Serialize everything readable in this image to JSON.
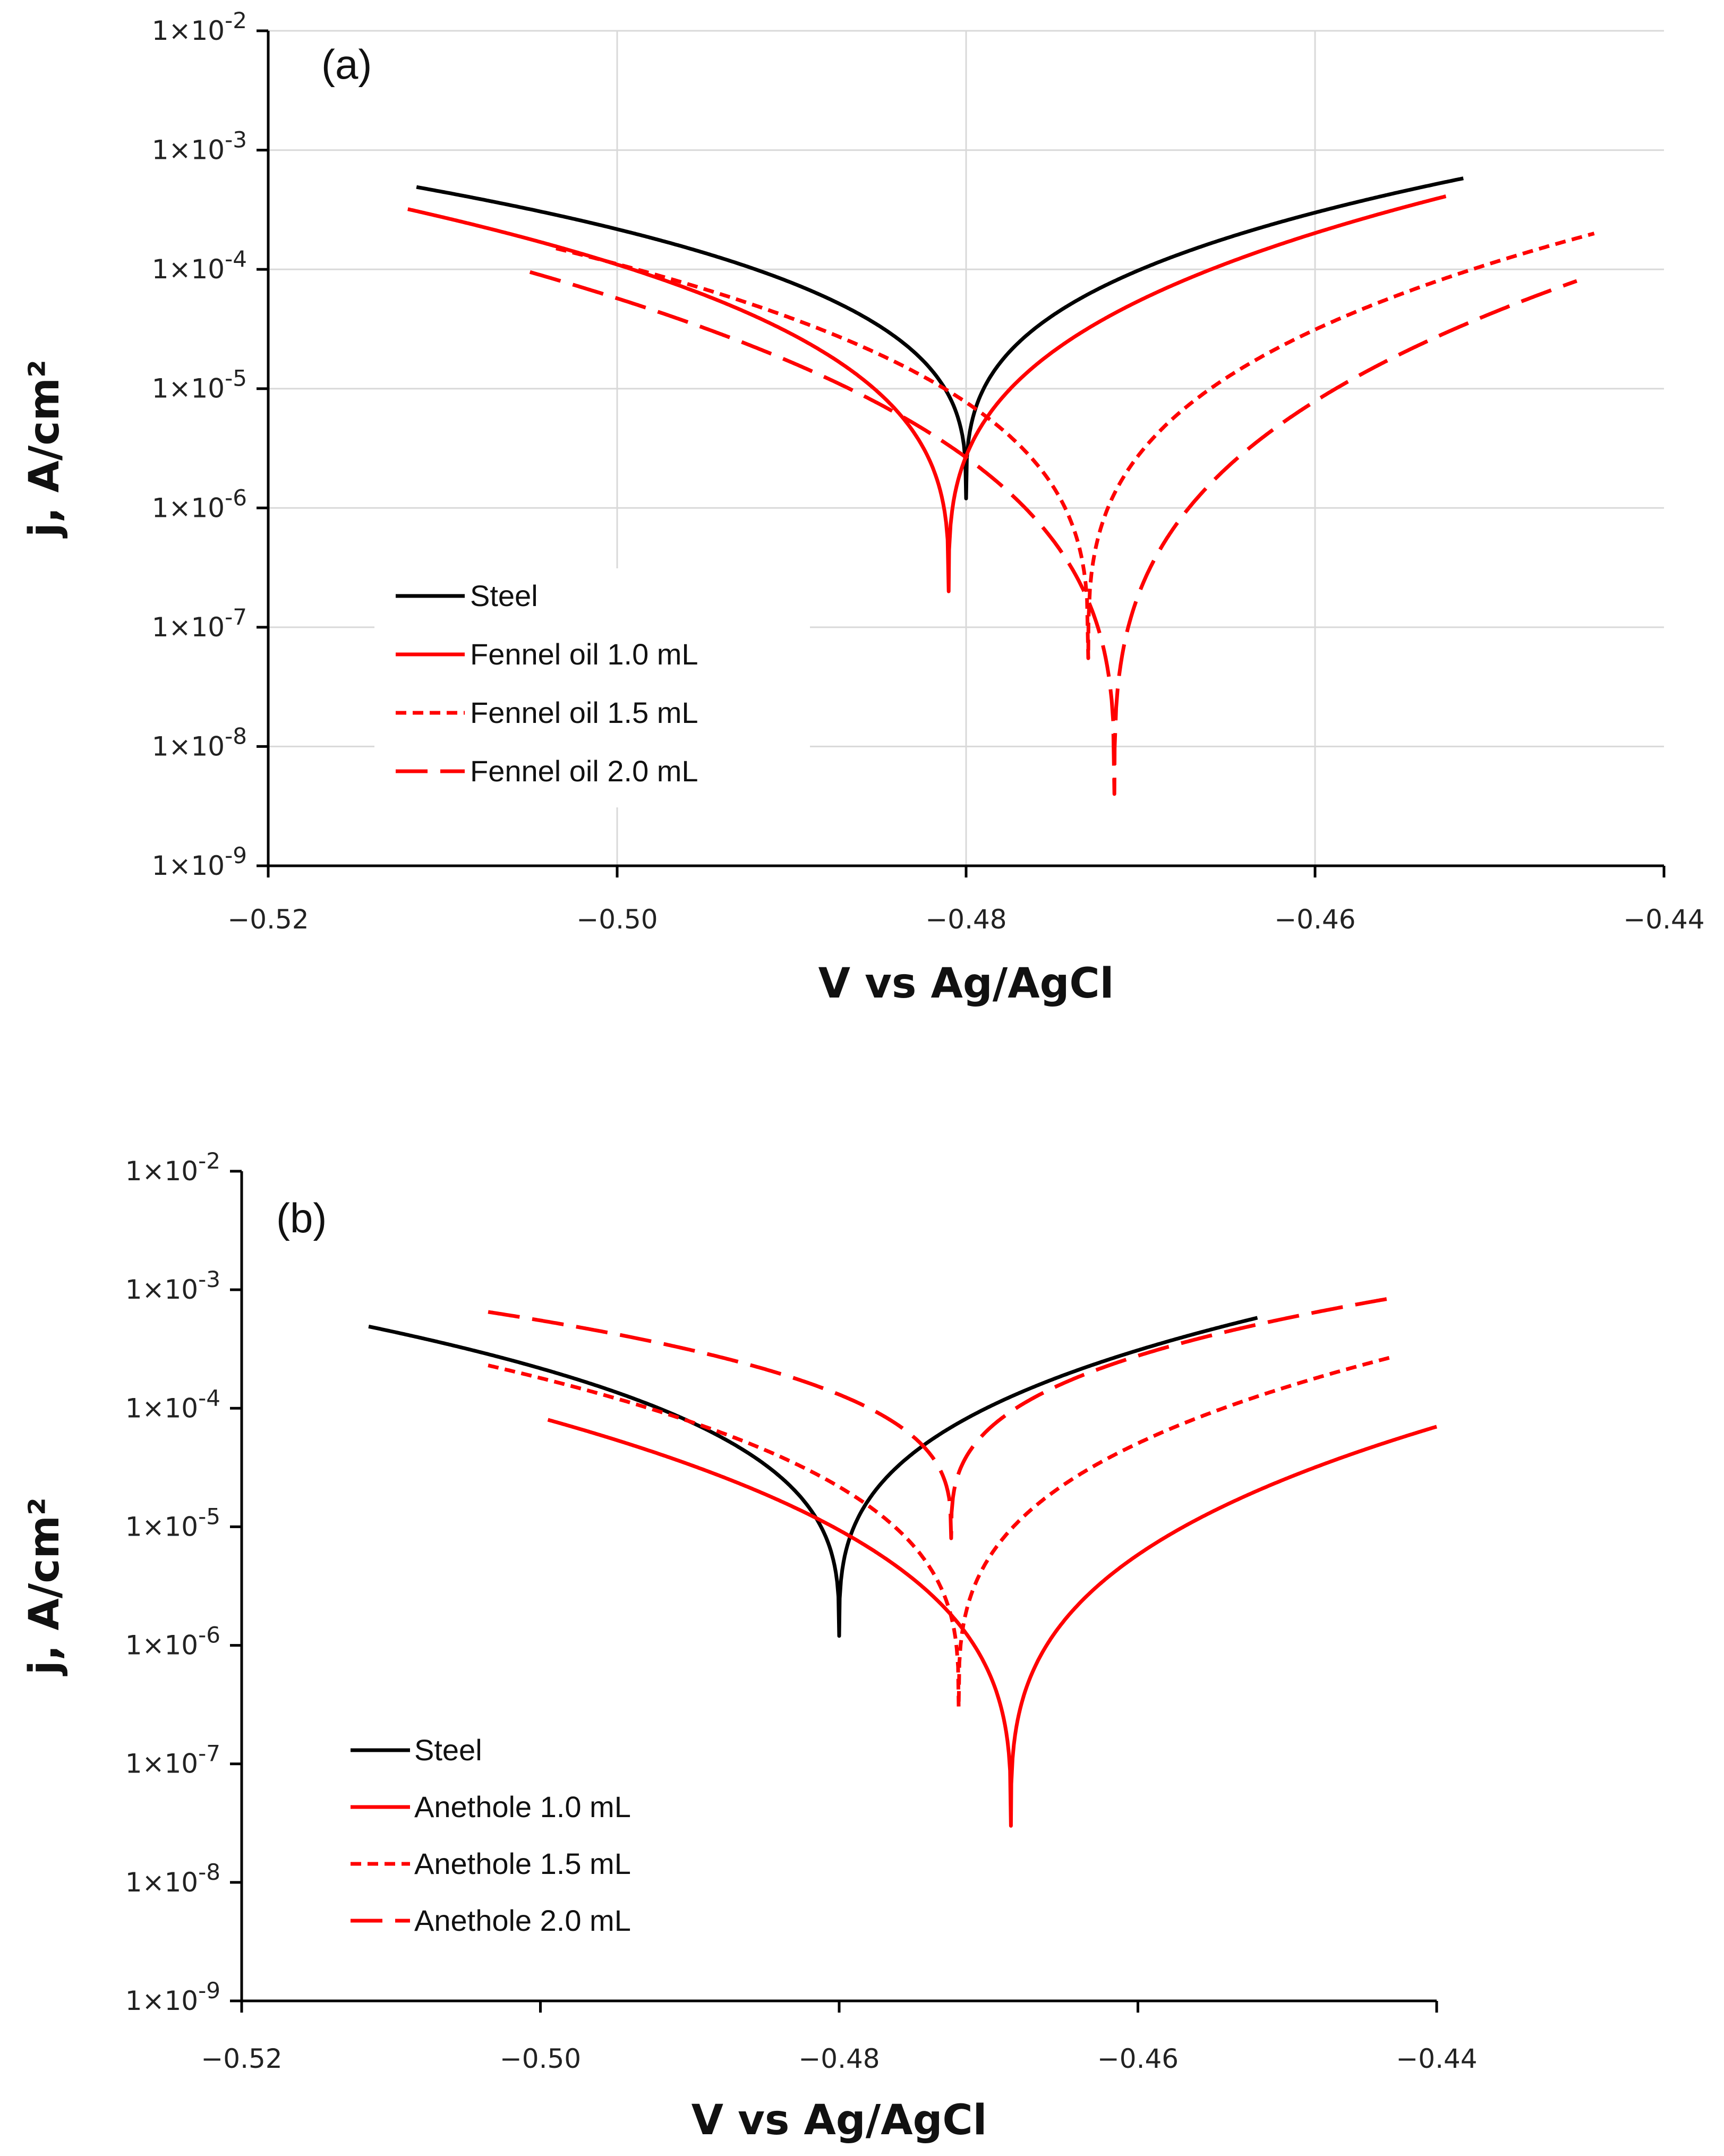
{
  "chart_data": [
    {
      "type": "line",
      "panel_label": "(a)",
      "xlabel": "V vs Ag/AgCl",
      "ylabel": "j, A/cm²",
      "yscale": "log",
      "xlim": [
        -0.52,
        -0.44
      ],
      "ylim_exponents": [
        -9,
        -2
      ],
      "x_tick_values": [
        -0.52,
        -0.5,
        -0.48,
        -0.46,
        -0.44
      ],
      "x_tick_labels": [
        "−0.52",
        "−0.50",
        "−0.48",
        "−0.46",
        "−0.44"
      ],
      "y_tick_prefix": "1×10",
      "y_tick_exponents": [
        "-2",
        "-3",
        "-4",
        "-5",
        "-6",
        "-7",
        "-8",
        "-9"
      ],
      "grid": true,
      "legend_position": "lower-left",
      "series": [
        {
          "name": "Steel",
          "color": "#000000",
          "dash": "solid",
          "ecorr": -0.48,
          "jcorr": 1.2e-06,
          "x_range": [
            -0.5115,
            -0.4515
          ],
          "j_start": 0.00049,
          "j_end": 0.00058
        },
        {
          "name": "Fennel oil 1.0 mL",
          "color": "#ff0000",
          "dash": "solid",
          "ecorr": -0.481,
          "jcorr": 2e-07,
          "x_range": [
            -0.512,
            -0.4525
          ],
          "j_start": 0.00032,
          "j_end": 0.00041
        },
        {
          "name": "Fennel oil 1.5 mL",
          "color": "#ff0000",
          "dash": "short-dash",
          "ecorr": -0.473,
          "jcorr": 5.5e-08,
          "x_range": [
            -0.5035,
            -0.444
          ],
          "j_start": 0.00015,
          "j_end": 0.0002
        },
        {
          "name": "Fennel oil 2.0 mL",
          "color": "#ff0000",
          "dash": "long-dash",
          "ecorr": -0.4715,
          "jcorr": 4e-09,
          "x_range": [
            -0.505,
            -0.445
          ],
          "j_start": 9.5e-05,
          "j_end": 8e-05
        }
      ]
    },
    {
      "type": "line",
      "panel_label": "(b)",
      "xlabel": "V vs Ag/AgCl",
      "ylabel": "j, A/cm²",
      "yscale": "log",
      "xlim": [
        -0.52,
        -0.44
      ],
      "ylim_exponents": [
        -9,
        -2
      ],
      "x_tick_values": [
        -0.52,
        -0.5,
        -0.48,
        -0.46,
        -0.44
      ],
      "x_tick_labels": [
        "−0.52",
        "−0.50",
        "−0.48",
        "−0.46",
        "−0.44"
      ],
      "y_tick_prefix": "1×10",
      "y_tick_exponents": [
        "-2",
        "-3",
        "-4",
        "-5",
        "-6",
        "-7",
        "-8",
        "-9"
      ],
      "grid": false,
      "legend_position": "lower-left",
      "series": [
        {
          "name": "Steel",
          "color": "#000000",
          "dash": "solid",
          "ecorr": -0.48,
          "jcorr": 1.2e-06,
          "x_range": [
            -0.5115,
            -0.452
          ],
          "j_start": 0.00049,
          "j_end": 0.00058
        },
        {
          "name": "Anethole 1.0 mL",
          "color": "#ff0000",
          "dash": "solid",
          "ecorr": -0.4685,
          "jcorr": 3e-08,
          "x_range": [
            -0.4995,
            -0.44
          ],
          "j_start": 8e-05,
          "j_end": 7e-05
        },
        {
          "name": "Anethole 1.5 mL",
          "color": "#ff0000",
          "dash": "short-dash",
          "ecorr": -0.472,
          "jcorr": 3e-07,
          "x_range": [
            -0.5035,
            -0.443
          ],
          "j_start": 0.00023,
          "j_end": 0.00027
        },
        {
          "name": "Anethole 2.0 mL",
          "color": "#ff0000",
          "dash": "long-dash",
          "ecorr": -0.4725,
          "jcorr": 8e-06,
          "x_range": [
            -0.5035,
            -0.443
          ],
          "j_start": 0.00065,
          "j_end": 0.00085
        }
      ]
    }
  ]
}
